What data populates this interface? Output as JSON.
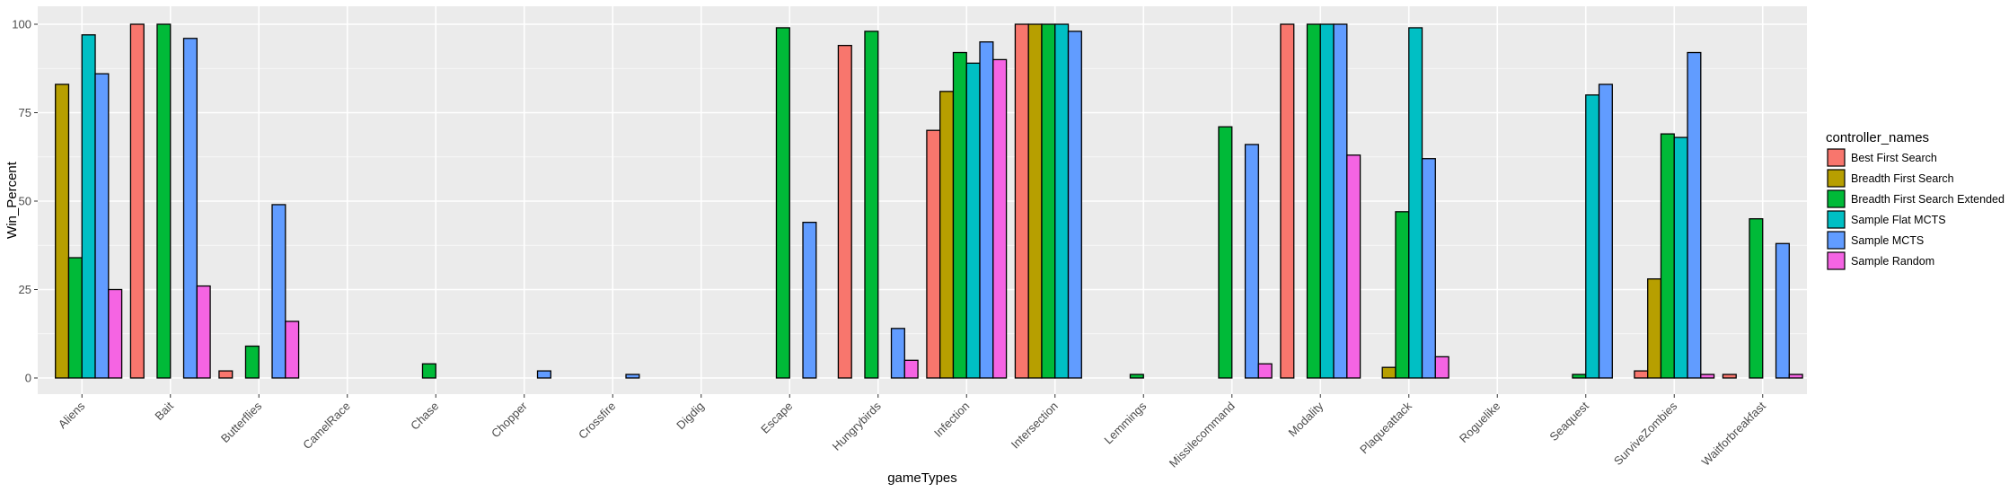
{
  "chart_data": {
    "type": "bar",
    "title": "",
    "xlabel": "gameTypes",
    "ylabel": "Win_Percent",
    "ylim": [
      0,
      100
    ],
    "yticks": [
      0,
      25,
      50,
      75,
      100
    ],
    "grid": true,
    "legend_position": "right",
    "legend_title": "controller_names",
    "categories": [
      "Aliens",
      "Bait",
      "Butterflies",
      "CamelRace",
      "Chase",
      "Chopper",
      "Crossfire",
      "Digdig",
      "Escape",
      "Hungrybirds",
      "Infection",
      "Intersection",
      "Lemmings",
      "Missilecommand",
      "Modality",
      "Plaqueattack",
      "Roguelike",
      "Seaquest",
      "SurviveZombies",
      "Waitforbreakfast"
    ],
    "series": [
      {
        "name": "Best First Search",
        "color": "#F8766D",
        "values": [
          0,
          100,
          2,
          0,
          0,
          0,
          0,
          0,
          0,
          94,
          70,
          100,
          0,
          0,
          100,
          0,
          0,
          0,
          2,
          1
        ]
      },
      {
        "name": "Breadth First Search",
        "color": "#B79F00",
        "values": [
          83,
          0,
          0,
          0,
          0,
          0,
          0,
          0,
          0,
          0,
          81,
          100,
          0,
          0,
          0,
          3,
          0,
          0,
          28,
          0
        ]
      },
      {
        "name": "Breadth First Search Extended",
        "color": "#00BA38",
        "values": [
          34,
          100,
          9,
          0,
          4,
          0,
          0,
          0,
          99,
          98,
          92,
          100,
          1,
          71,
          100,
          47,
          0,
          1,
          69,
          45
        ]
      },
      {
        "name": "Sample Flat MCTS",
        "color": "#00BFC4",
        "values": [
          97,
          0,
          0,
          0,
          0,
          0,
          0,
          0,
          0,
          0,
          89,
          100,
          0,
          0,
          100,
          99,
          0,
          80,
          68,
          0
        ]
      },
      {
        "name": "Sample MCTS",
        "color": "#619CFF",
        "values": [
          86,
          96,
          49,
          0,
          0,
          2,
          1,
          0,
          44,
          14,
          95,
          98,
          0,
          66,
          100,
          62,
          0,
          83,
          92,
          38
        ]
      },
      {
        "name": "Sample Random",
        "color": "#F564E3",
        "values": [
          25,
          26,
          16,
          0,
          0,
          0,
          0,
          0,
          0,
          5,
          90,
          0,
          0,
          4,
          63,
          6,
          0,
          0,
          1,
          1
        ]
      }
    ]
  }
}
